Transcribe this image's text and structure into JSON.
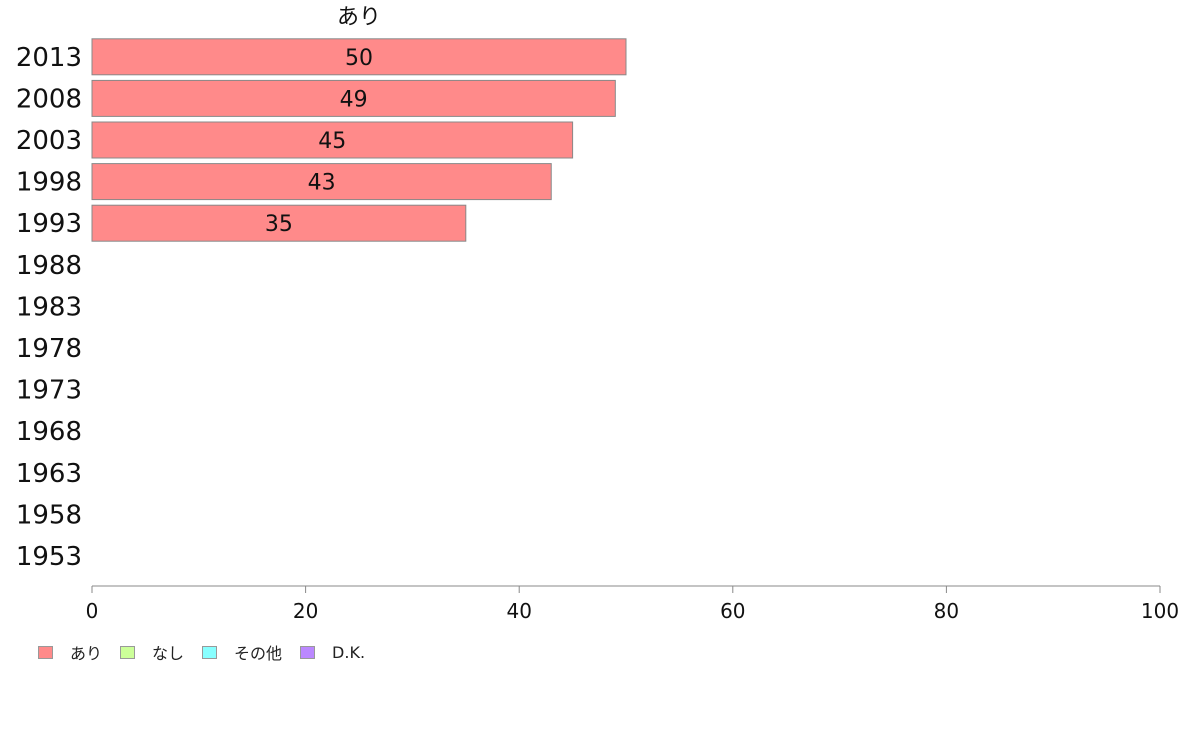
{
  "chart_data": {
    "type": "bar",
    "orientation": "horizontal",
    "stacked": true,
    "categories": [
      "2013",
      "2008",
      "2003",
      "1998",
      "1993",
      "1988",
      "1983",
      "1978",
      "1973",
      "1968",
      "1963",
      "1958",
      "1953"
    ],
    "series": [
      {
        "name": "あり",
        "color": "#ff8a8a",
        "values": [
          50,
          49,
          45,
          43,
          35,
          null,
          null,
          null,
          null,
          null,
          null,
          null,
          null
        ]
      },
      {
        "name": "なし",
        "color": "#ccff99",
        "values": [
          null,
          null,
          null,
          null,
          null,
          null,
          null,
          null,
          null,
          null,
          null,
          null,
          null
        ]
      },
      {
        "name": "その他",
        "color": "#88ffff",
        "values": [
          null,
          null,
          null,
          null,
          null,
          null,
          null,
          null,
          null,
          null,
          null,
          null,
          null
        ]
      },
      {
        "name": "D.K.",
        "color": "#bb88ff",
        "values": [
          null,
          null,
          null,
          null,
          null,
          null,
          null,
          null,
          null,
          null,
          null,
          null,
          null
        ]
      }
    ],
    "column_label": "あり",
    "xlim": [
      0,
      100
    ],
    "xticks": [
      0,
      20,
      40,
      60,
      80,
      100
    ],
    "grid": false,
    "legend_position": "bottom-left"
  }
}
